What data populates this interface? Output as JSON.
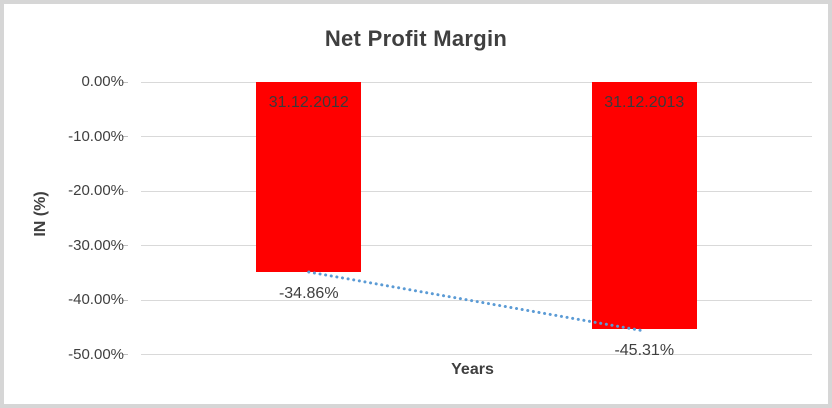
{
  "chart_data": {
    "type": "bar",
    "title": "Net Profit Margin",
    "xlabel": "Years",
    "ylabel": "IN (%)",
    "categories": [
      "31.12.2012",
      "31.12.2013"
    ],
    "values": [
      -34.86,
      -45.31
    ],
    "data_labels": [
      "-34.86%",
      "-45.31%"
    ],
    "category_label_position": "inside-top",
    "yticks": [
      0,
      -10,
      -20,
      -30,
      -40,
      -50
    ],
    "ytick_labels": [
      "0.00%",
      "-10.00%",
      "-20.00%",
      "-30.00%",
      "-40.00%",
      "-50.00%"
    ],
    "ylim": [
      -50,
      0
    ],
    "grid": true,
    "legend": "none",
    "bar_color": "#ff0000",
    "text_color": "#3f3f3f",
    "gridline_color": "#d9d9d9",
    "trendline": {
      "type": "linear",
      "style": "dotted",
      "color": "#5b9bd5"
    }
  }
}
